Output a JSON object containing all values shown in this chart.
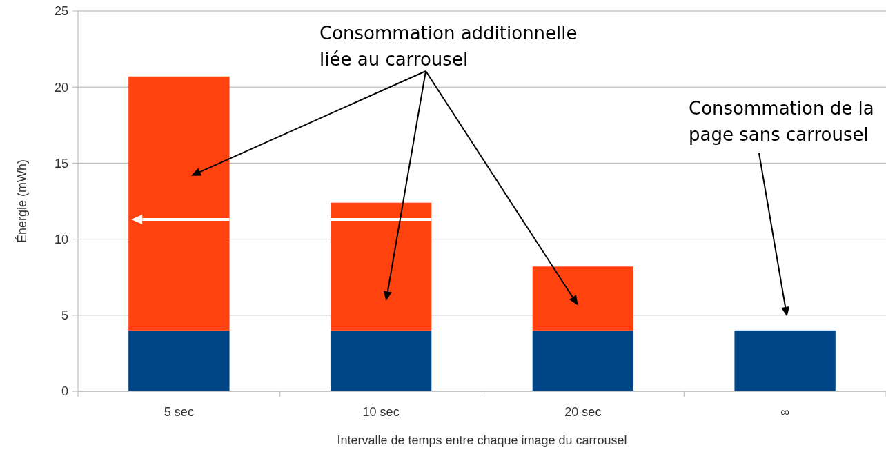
{
  "chart_data": {
    "type": "bar",
    "stacked": true,
    "xlabel": "Intervalle de temps entre chaque image du carrousel",
    "ylabel": "Énergie (mWh)",
    "categories": [
      "5 sec",
      "10 sec",
      "20 sec",
      "∞"
    ],
    "series": [
      {
        "color": "#004586",
        "values": [
          4,
          4,
          4,
          4
        ]
      },
      {
        "color": "#ff420e",
        "values": [
          16.7,
          8.4,
          4.2,
          null
        ]
      }
    ],
    "ylim": [
      0,
      25
    ],
    "yticks": [
      0,
      5,
      10,
      15,
      20,
      25
    ],
    "grid": "y",
    "annotations": [
      "Consommation additionnelle\nliée au carrousel",
      "Consommation de la\npage sans carrousel"
    ]
  }
}
